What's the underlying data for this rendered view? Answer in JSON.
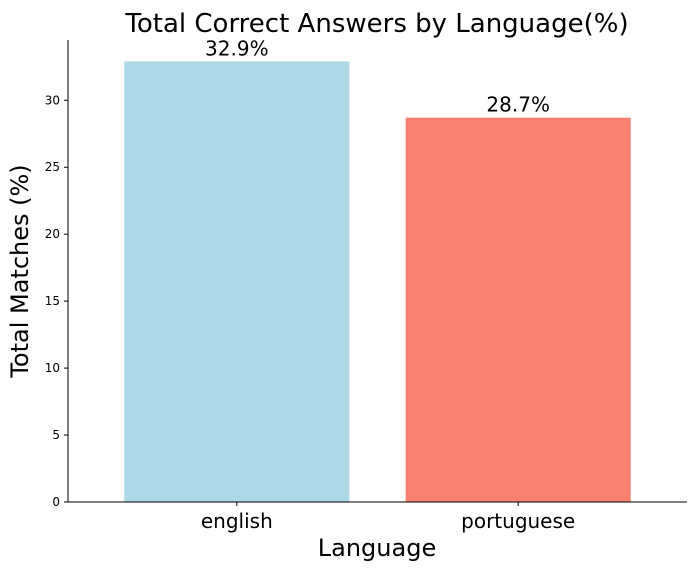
{
  "chart_data": {
    "type": "bar",
    "title": "Total Correct Answers by Language(%)",
    "xlabel": "Language",
    "ylabel": "Total Matches (%)",
    "categories": [
      "english",
      "portuguese"
    ],
    "values": [
      32.9,
      28.7
    ],
    "data_labels": [
      "32.9%",
      "28.7%"
    ],
    "colors": [
      "#add8e6",
      "#fa8072"
    ],
    "ylim": [
      0,
      34.5
    ],
    "yticks": [
      0,
      5,
      10,
      15,
      20,
      25,
      30
    ],
    "grid": false,
    "legend": "none"
  }
}
